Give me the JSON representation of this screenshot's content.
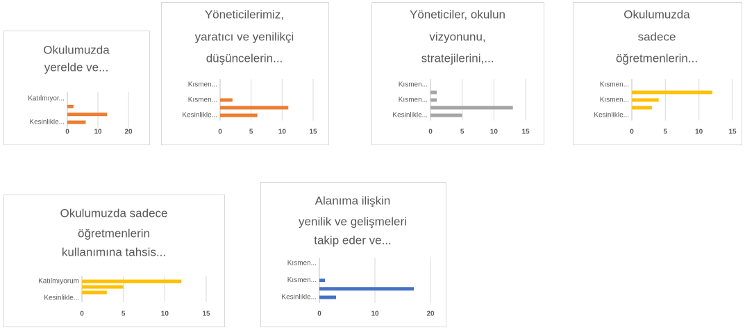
{
  "chart_data": [
    {
      "type": "barh",
      "title": [
        "Okulumuzda",
        "yerelde ve..."
      ],
      "categories": [
        "Katılmıyor...",
        null,
        null,
        "Kesinlikle..."
      ],
      "values": [
        0,
        2,
        13,
        6
      ],
      "color": "#ed7d31",
      "xlim": [
        0,
        20
      ],
      "xticks": [
        0,
        10,
        20
      ],
      "grid": true
    },
    {
      "type": "barh",
      "title": [
        "Yöneticilerimiz,",
        "yaratıcı ve yenilikçi",
        "düşüncelerin..."
      ],
      "categories": [
        "Kısmen...",
        null,
        "Kısmen...",
        null,
        "Kesinlikle..."
      ],
      "values": [
        0,
        0,
        2,
        11,
        6
      ],
      "color": "#ed7d31",
      "xlim": [
        0,
        15
      ],
      "xticks": [
        0,
        5,
        10,
        15
      ],
      "grid": true
    },
    {
      "type": "barh",
      "title": [
        "Yöneticiler, okulun",
        "vizyonunu,",
        "stratejilerini,..."
      ],
      "categories": [
        "Kısmen...",
        null,
        "Kısmen...",
        null,
        "Kesinlikle..."
      ],
      "values": [
        0,
        1,
        1,
        13,
        5
      ],
      "color": "#a5a5a5",
      "xlim": [
        0,
        15
      ],
      "xticks": [
        0,
        5,
        10,
        15
      ],
      "grid": true
    },
    {
      "type": "barh",
      "title": [
        "Okulumuzda",
        "sadece",
        "öğretmenlerin..."
      ],
      "categories": [
        "Kısmen...",
        null,
        "Kısmen...",
        null,
        "Kesinlikle..."
      ],
      "values": [
        0,
        12,
        4,
        3,
        0
      ],
      "color": "#ffc000",
      "xlim": [
        0,
        15
      ],
      "xticks": [
        0,
        5,
        10,
        15
      ],
      "grid": true
    },
    {
      "type": "barh",
      "title": [
        "Okulumuzda sadece",
        "öğretmenlerin",
        "kullanımına tahsis..."
      ],
      "categories": [
        "Katılmıyorum",
        null,
        null,
        "Kesinlikle..."
      ],
      "values": [
        12,
        5,
        3,
        0
      ],
      "color": "#ffc000",
      "xlim": [
        0,
        15
      ],
      "xticks": [
        0,
        5,
        10,
        15
      ],
      "grid": true
    },
    {
      "type": "barh",
      "title": [
        "Alanıma ilişkin",
        "yenilik ve gelişmeleri",
        "takip eder ve..."
      ],
      "categories": [
        "Kısmen...",
        null,
        "Kısmen...",
        null,
        "Kesinlikle..."
      ],
      "values": [
        0,
        0,
        1,
        17,
        3
      ],
      "color": "#4472c4",
      "xlim": [
        0,
        20
      ],
      "xticks": [
        0,
        10,
        20
      ],
      "grid": true
    }
  ]
}
